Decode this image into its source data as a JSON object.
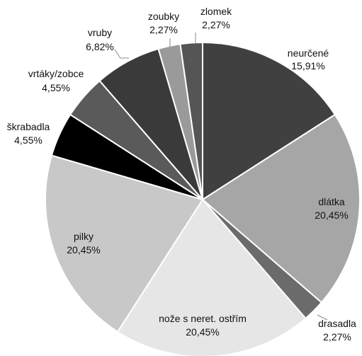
{
  "chart_data": {
    "type": "pie",
    "title": "",
    "series": [
      {
        "name": "",
        "slices": [
          {
            "label": "neurčené",
            "value": 15.91,
            "value_label": "15,91%",
            "color": "#404040"
          },
          {
            "label": "dlátka",
            "value": 20.45,
            "value_label": "20,45%",
            "color": "#a6a6a6"
          },
          {
            "label": "drasadla",
            "value": 2.27,
            "value_label": "2,27%",
            "color": "#6b6b6b"
          },
          {
            "label": "nože s neret. ostřím",
            "value": 20.45,
            "value_label": "20,45%",
            "color": "#e6e6e6"
          },
          {
            "label": "pilky",
            "value": 20.45,
            "value_label": "20,45%",
            "color": "#c8c8c8"
          },
          {
            "label": "škrabadla",
            "value": 4.55,
            "value_label": "4,55%",
            "color": "#000000"
          },
          {
            "label": "vrtáky/zobce",
            "value": 4.55,
            "value_label": "4,55%",
            "color": "#5a5a5a"
          },
          {
            "label": "vruby",
            "value": 6.82,
            "value_label": "6,82%",
            "color": "#3a3a3a"
          },
          {
            "label": "zoubky",
            "value": 2.27,
            "value_label": "2,27%",
            "color": "#9a9a9a"
          },
          {
            "label": "zlomek",
            "value": 2.27,
            "value_label": "2,27%",
            "color": "#555555"
          }
        ]
      }
    ],
    "legend": "none",
    "labels": "outside-and-inside"
  }
}
